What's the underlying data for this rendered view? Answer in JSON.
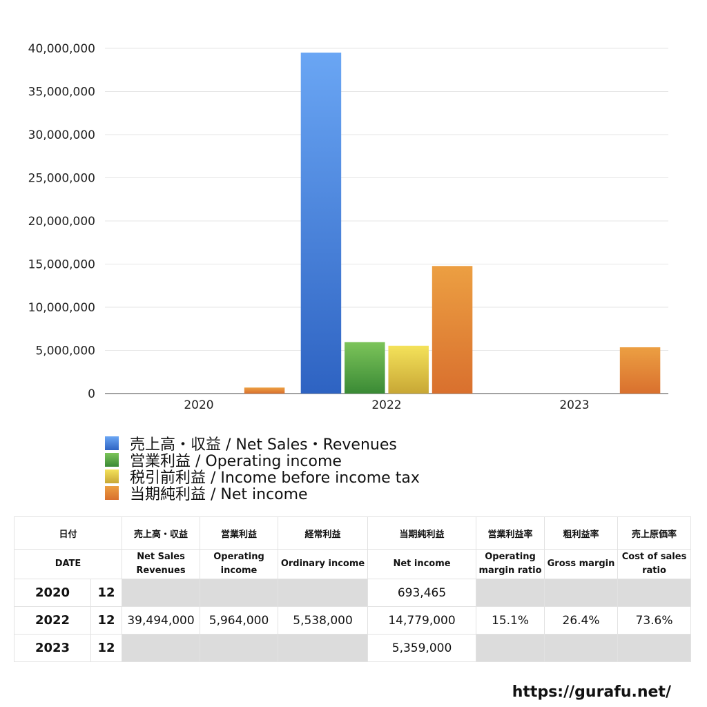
{
  "chart_data": {
    "type": "bar",
    "categories": [
      "2020",
      "2022",
      "2023"
    ],
    "ylim": [
      0,
      40000000
    ],
    "yticks": [
      "0",
      "5,000,000",
      "10,000,000",
      "15,000,000",
      "20,000,000",
      "25,000,000",
      "30,000,000",
      "35,000,000",
      "40,000,000"
    ],
    "grid": true,
    "legend_position": "bottom-left",
    "series": [
      {
        "name": "売上高・収益 / Net Sales・Revenues",
        "values": [
          null,
          39494000,
          null
        ],
        "color_top": "#6aa6f4",
        "color_bottom": "#2e63c2"
      },
      {
        "name": "営業利益 / Operating income",
        "values": [
          null,
          5964000,
          null
        ],
        "color_top": "#7cc45a",
        "color_bottom": "#3a8a35"
      },
      {
        "name": "税引前利益 / Income before income tax",
        "values": [
          null,
          5538000,
          null
        ],
        "color_top": "#f4e25a",
        "color_bottom": "#c8a735"
      },
      {
        "name": "当期純利益 / Net income",
        "values": [
          693465,
          14779000,
          5359000
        ],
        "color_top": "#ec9f42",
        "color_bottom": "#d9702e"
      }
    ]
  },
  "table": {
    "header_jp": [
      "日付",
      "売上高・収益",
      "営業利益",
      "経常利益",
      "当期純利益",
      "営業利益率",
      "粗利益率",
      "売上原価率"
    ],
    "header_en": [
      "DATE",
      "Net Sales Revenues",
      "Operating income",
      "Ordinary income",
      "Net income",
      "Operating margin ratio",
      "Gross margin",
      "Cost of sales ratio"
    ],
    "rows": [
      {
        "year": "2020",
        "month": "12",
        "cells": [
          "",
          "",
          "",
          "693,465",
          "",
          "",
          ""
        ]
      },
      {
        "year": "2022",
        "month": "12",
        "cells": [
          "39,494,000",
          "5,964,000",
          "5,538,000",
          "14,779,000",
          "15.1%",
          "26.4%",
          "73.6%"
        ]
      },
      {
        "year": "2023",
        "month": "12",
        "cells": [
          "",
          "",
          "",
          "5,359,000",
          "",
          "",
          ""
        ]
      }
    ]
  },
  "footer": "https://gurafu.net/"
}
